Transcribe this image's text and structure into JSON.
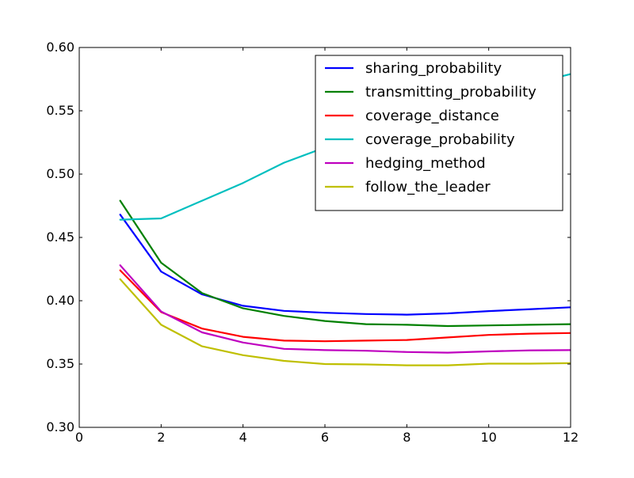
{
  "chart_data": {
    "type": "line",
    "title": "",
    "xlabel": "",
    "ylabel": "",
    "xlim": [
      0,
      12
    ],
    "ylim": [
      0.3,
      0.6
    ],
    "xticks": [
      0,
      2,
      4,
      6,
      8,
      10,
      12
    ],
    "yticks": [
      0.3,
      0.35,
      0.4,
      0.45,
      0.5,
      0.55,
      0.6
    ],
    "xtick_labels": [
      "0",
      "2",
      "4",
      "6",
      "8",
      "10",
      "12"
    ],
    "ytick_labels": [
      "0.30",
      "0.35",
      "0.40",
      "0.45",
      "0.50",
      "0.55",
      "0.60"
    ],
    "grid": false,
    "legend_position": "top-right",
    "x": [
      1,
      2,
      3,
      4,
      5,
      6,
      7,
      8,
      9,
      10,
      11,
      12
    ],
    "series": [
      {
        "name": "sharing_probability",
        "color": "#0000ff",
        "values": [
          0.468,
          0.423,
          0.405,
          0.396,
          0.392,
          0.3905,
          0.3895,
          0.389,
          0.39,
          0.3918,
          0.3933,
          0.3948
        ]
      },
      {
        "name": "transmitting_probability",
        "color": "#008000",
        "values": [
          0.479,
          0.43,
          0.406,
          0.394,
          0.388,
          0.384,
          0.3815,
          0.381,
          0.38,
          0.3805,
          0.381,
          0.3815
        ]
      },
      {
        "name": "coverage_distance",
        "color": "#ff0000",
        "values": [
          0.424,
          0.391,
          0.378,
          0.3715,
          0.3685,
          0.368,
          0.3685,
          0.369,
          0.371,
          0.373,
          0.374,
          0.3745
        ]
      },
      {
        "name": "coverage_probability",
        "color": "#00bfbf",
        "values": [
          0.464,
          0.465,
          0.479,
          0.493,
          0.509,
          0.521,
          0.533,
          0.543,
          0.553,
          0.563,
          0.571,
          0.579
        ]
      },
      {
        "name": "hedging_method",
        "color": "#bf00bf",
        "values": [
          0.428,
          0.3915,
          0.375,
          0.367,
          0.362,
          0.361,
          0.3605,
          0.3595,
          0.359,
          0.36,
          0.3608,
          0.361
        ]
      },
      {
        "name": "follow_the_leader",
        "color": "#bfbf00",
        "values": [
          0.417,
          0.381,
          0.364,
          0.357,
          0.3525,
          0.35,
          0.3497,
          0.349,
          0.349,
          0.3503,
          0.3503,
          0.3507
        ]
      }
    ]
  }
}
